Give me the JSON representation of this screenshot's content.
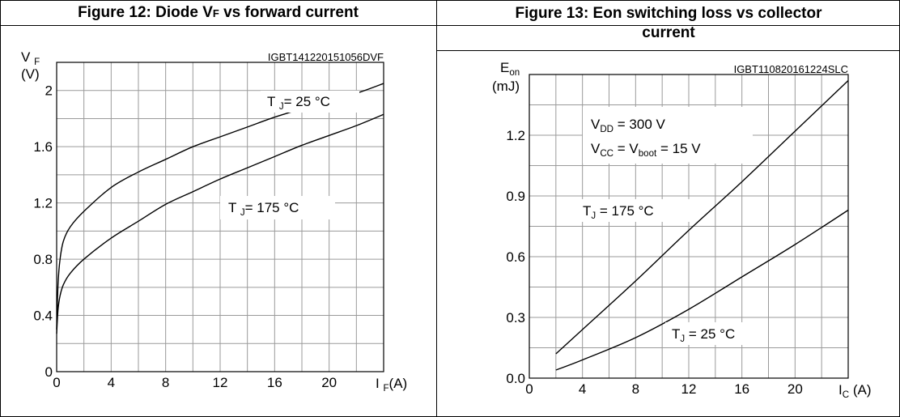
{
  "figure12": {
    "title_main": "Figure 12: Diode V",
    "title_sub": "F",
    "title_rest": " vs forward current"
  },
  "figure13": {
    "title_line1": "Figure 13: Eon switching loss vs collector",
    "title_line2": "current"
  },
  "chart_data": [
    {
      "type": "line",
      "title": "Figure 12: Diode VF vs forward current",
      "code": "IGBT141220151056DVF",
      "ylabel_main": "V",
      "ylabel_sub": "F",
      "ylabel_unit": "(V)",
      "xlabel_main": "I",
      "xlabel_sub": "F",
      "xlabel_unit": "(A)",
      "xlim": [
        0,
        24
      ],
      "ylim": [
        0,
        2.2
      ],
      "xticks": [
        "0",
        "4",
        "8",
        "12",
        "16",
        "20"
      ],
      "xtick_values": [
        0,
        4,
        8,
        12,
        16,
        20
      ],
      "yticks": [
        "0",
        "0.4",
        "0.8",
        "1.2",
        "1.6",
        "2"
      ],
      "ytick_values": [
        0,
        0.4,
        0.8,
        1.2,
        1.6,
        2.0
      ],
      "grid": true,
      "series": [
        {
          "name": "T J= 25 °C",
          "label_main": "T",
          "label_sub": "J",
          "label_rest": "= 25 °C",
          "x": [
            0,
            0.1,
            0.25,
            0.5,
            1,
            2,
            4,
            6,
            8,
            10,
            12,
            14,
            16,
            18,
            20,
            22,
            24
          ],
          "values": [
            0.3,
            0.62,
            0.8,
            0.93,
            1.03,
            1.14,
            1.31,
            1.42,
            1.51,
            1.6,
            1.67,
            1.74,
            1.81,
            1.87,
            1.93,
            1.98,
            2.05
          ]
        },
        {
          "name": "T J= 175 °C",
          "label_main": "T",
          "label_sub": "J",
          "label_rest": "= 175 °C",
          "x": [
            0,
            0.1,
            0.25,
            0.5,
            1,
            2,
            4,
            6,
            8,
            10,
            12,
            14,
            16,
            18,
            20,
            22,
            24
          ],
          "values": [
            0.27,
            0.44,
            0.54,
            0.62,
            0.7,
            0.8,
            0.95,
            1.07,
            1.19,
            1.28,
            1.37,
            1.45,
            1.53,
            1.61,
            1.68,
            1.75,
            1.83
          ]
        }
      ]
    },
    {
      "type": "line",
      "title": "Figure 13: Eon switching loss vs collector current",
      "code": "IGBT110820161224SLC",
      "ylabel_main": "E",
      "ylabel_sub": "on",
      "ylabel_unit": "(mJ)",
      "xlabel_main": "I",
      "xlabel_sub": "C",
      "xlabel_unit": "(A)",
      "xlim": [
        0,
        24
      ],
      "ylim": [
        0,
        1.5
      ],
      "xticks": [
        "0",
        "4",
        "8",
        "12",
        "16",
        "20"
      ],
      "xtick_values": [
        0,
        4,
        8,
        12,
        16,
        20
      ],
      "yticks": [
        "0.0",
        "0.3",
        "0.6",
        "0.9",
        "1.2"
      ],
      "ytick_values": [
        0,
        0.3,
        0.6,
        0.9,
        1.2
      ],
      "grid": true,
      "annotation": {
        "line1_main": "V",
        "line1_sub": "DD",
        "line1_rest": " = 300 V",
        "line2_main": "V",
        "line2_sub": "CC",
        "line2_mid": " = V",
        "line2_sub2": "boot",
        "line2_rest": " = 15 V"
      },
      "series": [
        {
          "name": "TJ = 175 °C",
          "label_main": "T",
          "label_sub": "J",
          "label_rest": " = 175 °C",
          "x": [
            2,
            4,
            8,
            12,
            16,
            20,
            24
          ],
          "values": [
            0.12,
            0.24,
            0.48,
            0.73,
            0.97,
            1.22,
            1.47
          ]
        },
        {
          "name": "TJ = 25 °C",
          "label_main": "T",
          "label_sub": "J",
          "label_rest": " = 25 °C",
          "x": [
            2,
            4,
            8,
            12,
            16,
            20,
            24
          ],
          "values": [
            0.04,
            0.09,
            0.2,
            0.34,
            0.5,
            0.66,
            0.83
          ]
        }
      ]
    }
  ]
}
